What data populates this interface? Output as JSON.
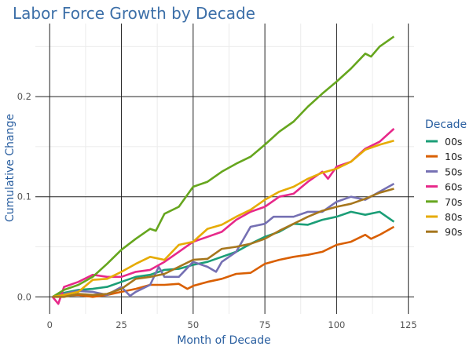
{
  "chart_data": {
    "type": "line",
    "title": "Labor Force Growth by Decade",
    "xlabel": "Month of Decade",
    "ylabel": "Cumulative Change",
    "xlim": [
      -5,
      127
    ],
    "ylim": [
      -0.017,
      0.273
    ],
    "xticks": [
      0,
      25,
      50,
      75,
      100,
      125
    ],
    "xtick_labels": [
      "0",
      "25",
      "50",
      "75",
      "100",
      "125"
    ],
    "yticks": [
      0.0,
      0.1,
      0.2
    ],
    "ytick_labels": [
      "0.0",
      "0.1",
      "0.2"
    ],
    "grid": true,
    "legend": {
      "title": "Decade",
      "placement": "right"
    },
    "series": [
      {
        "name": "00s",
        "color": "#1b9e77",
        "x": [
          1,
          5,
          10,
          15,
          20,
          25,
          30,
          35,
          40,
          45,
          50,
          55,
          60,
          65,
          70,
          75,
          80,
          85,
          90,
          95,
          100,
          105,
          110,
          115,
          120
        ],
        "y": [
          0,
          0.004,
          0.007,
          0.008,
          0.01,
          0.015,
          0.02,
          0.022,
          0.027,
          0.028,
          0.032,
          0.035,
          0.04,
          0.045,
          0.053,
          0.06,
          0.065,
          0.073,
          0.072,
          0.077,
          0.08,
          0.085,
          0.082,
          0.085,
          0.075
        ]
      },
      {
        "name": "10s",
        "color": "#d95f02",
        "x": [
          1,
          5,
          10,
          15,
          20,
          25,
          30,
          35,
          40,
          45,
          48,
          50,
          55,
          60,
          65,
          70,
          75,
          80,
          85,
          90,
          95,
          100,
          105,
          110,
          112,
          115,
          120
        ],
        "y": [
          0,
          0.001,
          0.002,
          0.0,
          0.002,
          0.005,
          0.008,
          0.012,
          0.012,
          0.013,
          0.008,
          0.011,
          0.015,
          0.018,
          0.023,
          0.024,
          0.033,
          0.037,
          0.04,
          0.042,
          0.045,
          0.052,
          0.055,
          0.062,
          0.058,
          0.062,
          0.07
        ]
      },
      {
        "name": "50s",
        "color": "#7570b3",
        "x": [
          1,
          5,
          10,
          15,
          20,
          25,
          28,
          30,
          35,
          38,
          40,
          45,
          50,
          55,
          58,
          60,
          65,
          70,
          75,
          78,
          85,
          90,
          95,
          100,
          105,
          110,
          115,
          120
        ],
        "y": [
          0,
          0.003,
          0.006,
          0.005,
          0.002,
          0.01,
          0.001,
          0.005,
          0.012,
          0.03,
          0.02,
          0.02,
          0.035,
          0.03,
          0.025,
          0.035,
          0.045,
          0.07,
          0.073,
          0.08,
          0.08,
          0.085,
          0.085,
          0.095,
          0.1,
          0.097,
          0.105,
          0.113
        ]
      },
      {
        "name": "60s",
        "color": "#e7298a",
        "x": [
          1,
          3,
          5,
          10,
          15,
          20,
          25,
          30,
          35,
          40,
          45,
          50,
          55,
          60,
          65,
          70,
          75,
          80,
          85,
          90,
          95,
          97,
          100,
          105,
          110,
          115,
          120
        ],
        "y": [
          0,
          -0.007,
          0.01,
          0.015,
          0.022,
          0.02,
          0.02,
          0.025,
          0.027,
          0.035,
          0.045,
          0.055,
          0.06,
          0.065,
          0.077,
          0.085,
          0.09,
          0.1,
          0.103,
          0.115,
          0.125,
          0.118,
          0.13,
          0.135,
          0.148,
          0.155,
          0.168
        ]
      },
      {
        "name": "70s",
        "color": "#66a61e",
        "x": [
          1,
          5,
          10,
          15,
          20,
          25,
          30,
          35,
          37,
          40,
          45,
          50,
          55,
          60,
          65,
          70,
          75,
          80,
          85,
          90,
          95,
          100,
          105,
          110,
          112,
          115,
          120
        ],
        "y": [
          0,
          0.007,
          0.012,
          0.02,
          0.033,
          0.047,
          0.058,
          0.068,
          0.066,
          0.083,
          0.09,
          0.11,
          0.115,
          0.125,
          0.133,
          0.14,
          0.152,
          0.165,
          0.175,
          0.19,
          0.203,
          0.215,
          0.228,
          0.243,
          0.24,
          0.25,
          0.26
        ]
      },
      {
        "name": "80s",
        "color": "#e6ab02",
        "x": [
          1,
          5,
          10,
          15,
          20,
          25,
          30,
          35,
          40,
          45,
          50,
          55,
          60,
          65,
          70,
          75,
          80,
          85,
          90,
          95,
          100,
          105,
          110,
          115,
          120
        ],
        "y": [
          0,
          0.002,
          0.005,
          0.017,
          0.018,
          0.025,
          0.033,
          0.04,
          0.037,
          0.052,
          0.055,
          0.068,
          0.072,
          0.08,
          0.087,
          0.097,
          0.105,
          0.11,
          0.118,
          0.124,
          0.128,
          0.135,
          0.147,
          0.152,
          0.156
        ]
      },
      {
        "name": "90s",
        "color": "#a6761d",
        "x": [
          1,
          5,
          10,
          15,
          20,
          25,
          30,
          35,
          40,
          45,
          50,
          55,
          60,
          65,
          70,
          75,
          80,
          85,
          90,
          95,
          100,
          105,
          110,
          115,
          120
        ],
        "y": [
          0,
          0.0,
          0.003,
          0.002,
          0.003,
          0.008,
          0.018,
          0.02,
          0.023,
          0.03,
          0.037,
          0.038,
          0.048,
          0.05,
          0.053,
          0.058,
          0.066,
          0.073,
          0.08,
          0.086,
          0.09,
          0.093,
          0.098,
          0.104,
          0.108
        ]
      }
    ]
  }
}
